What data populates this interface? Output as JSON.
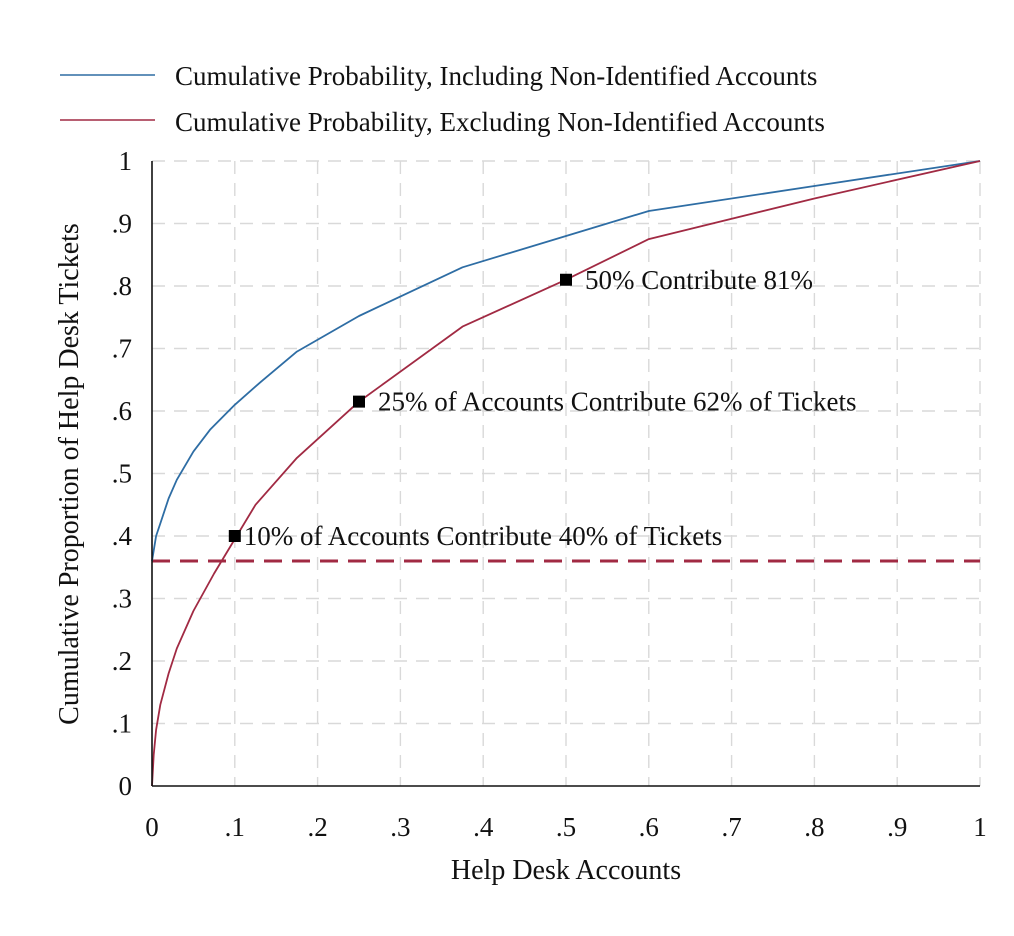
{
  "chart_data": {
    "type": "line",
    "xlabel": "Help Desk Accounts",
    "ylabel": "Cumulative Proportion of Help Desk Tickets",
    "xlim": [
      0,
      1
    ],
    "ylim": [
      0,
      1
    ],
    "grid": true,
    "legend_position": "top-left",
    "x_ticks": [
      {
        "value": 0,
        "label": "0"
      },
      {
        "value": 0.1,
        "label": ".1"
      },
      {
        "value": 0.2,
        "label": ".2"
      },
      {
        "value": 0.3,
        "label": ".3"
      },
      {
        "value": 0.4,
        "label": ".4"
      },
      {
        "value": 0.5,
        "label": ".5"
      },
      {
        "value": 0.6,
        "label": ".6"
      },
      {
        "value": 0.7,
        "label": ".7"
      },
      {
        "value": 0.8,
        "label": ".8"
      },
      {
        "value": 0.9,
        "label": ".9"
      },
      {
        "value": 1,
        "label": "1"
      }
    ],
    "y_ticks": [
      {
        "value": 0,
        "label": "0"
      },
      {
        "value": 0.1,
        "label": ".1"
      },
      {
        "value": 0.2,
        "label": ".2"
      },
      {
        "value": 0.3,
        "label": ".3"
      },
      {
        "value": 0.4,
        "label": ".4"
      },
      {
        "value": 0.5,
        "label": ".5"
      },
      {
        "value": 0.6,
        "label": ".6"
      },
      {
        "value": 0.7,
        "label": ".7"
      },
      {
        "value": 0.8,
        "label": ".8"
      },
      {
        "value": 0.9,
        "label": ".9"
      },
      {
        "value": 1,
        "label": "1"
      }
    ],
    "series": [
      {
        "name": "Cumulative Probability, Including Non-Identified Accounts",
        "color": "#2e6da4",
        "x": [
          0,
          0.005,
          0.01,
          0.02,
          0.03,
          0.05,
          0.07,
          0.1,
          0.13,
          0.175,
          0.25,
          0.375,
          0.5,
          0.6,
          0.8,
          1.0
        ],
        "y": [
          0.36,
          0.4,
          0.42,
          0.46,
          0.49,
          0.535,
          0.57,
          0.61,
          0.645,
          0.695,
          0.752,
          0.83,
          0.88,
          0.92,
          0.96,
          1.0
        ]
      },
      {
        "name": "Cumulative Probability, Excluding Non-Identified Accounts",
        "color": "#a12a43",
        "x": [
          0,
          0.002,
          0.005,
          0.01,
          0.02,
          0.03,
          0.05,
          0.075,
          0.1,
          0.125,
          0.175,
          0.25,
          0.375,
          0.5,
          0.6,
          0.8,
          1.0
        ],
        "y": [
          0,
          0.05,
          0.09,
          0.13,
          0.18,
          0.22,
          0.28,
          0.34,
          0.395,
          0.45,
          0.525,
          0.615,
          0.735,
          0.81,
          0.875,
          0.94,
          1.0
        ]
      }
    ],
    "reference_line": {
      "y": 0.36,
      "style": "dashed",
      "color": "#a12a43"
    },
    "annotations": [
      {
        "x": 0.1,
        "y": 0.4,
        "text": "10% of Accounts Contribute 40% of Tickets"
      },
      {
        "x": 0.25,
        "y": 0.615,
        "text": "25% of Accounts Contribute 62% of Tickets"
      },
      {
        "x": 0.5,
        "y": 0.81,
        "text": "50% Contribute 81%"
      }
    ]
  }
}
